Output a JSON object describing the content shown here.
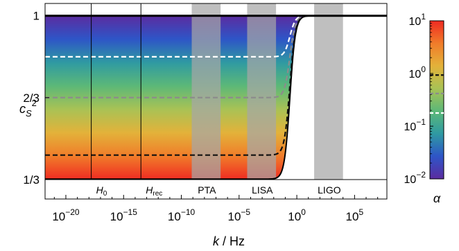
{
  "chart_data": {
    "type": "area",
    "xlabel_var": "k",
    "xlabel_unit": " / Hz",
    "ylabel_base": "c",
    "ylabel_sub": "S",
    "ylabel_sup": "2",
    "x_scale": "log",
    "xlim_log10": [
      -21.8,
      7.8
    ],
    "ylim": [
      0.3333,
      1.05
    ],
    "x_ticks": [
      {
        "exp": -20,
        "base": "10",
        "sup": "−20"
      },
      {
        "exp": -15,
        "base": "10",
        "sup": "−15"
      },
      {
        "exp": -10,
        "base": "10",
        "sup": "−10"
      },
      {
        "exp": -5,
        "base": "10",
        "sup": "−5"
      },
      {
        "exp": 0,
        "base": "10",
        "sup": "0"
      },
      {
        "exp": 5,
        "base": "10",
        "sup": "5"
      }
    ],
    "y_ticks": [
      {
        "value": 1,
        "label": "1"
      },
      {
        "value": 0.6667,
        "label": "2/3"
      },
      {
        "value": 0.3333,
        "label": "1/3"
      }
    ],
    "vlines": [
      {
        "log10_k": -17.8,
        "base": "H",
        "sub": "0"
      },
      {
        "log10_k": -13.5,
        "base": "H",
        "sub": "rec"
      }
    ],
    "bands": [
      {
        "label": "PTA",
        "log10_min": -9.1,
        "log10_max": -6.6
      },
      {
        "label": "LISA",
        "log10_min": -4.3,
        "log10_max": -1.8
      },
      {
        "label": "LIGO",
        "log10_min": 1.5,
        "log10_max": 4.0
      }
    ],
    "transition_log10_k": -0.6,
    "curves": [
      {
        "plateau": 0.833,
        "style": "dashed",
        "color": "#ffffff"
      },
      {
        "plateau": 0.667,
        "style": "dashed",
        "color": "#8c8c8c"
      },
      {
        "plateau": 0.433,
        "style": "dashed",
        "color": "#111111"
      }
    ],
    "colorbar": {
      "label": "α",
      "scale": "log",
      "ticks": [
        {
          "exp": 1,
          "base": "10",
          "sup": "1"
        },
        {
          "exp": 0,
          "base": "10",
          "sup": "0"
        },
        {
          "exp": -1,
          "base": "10",
          "sup": "−1"
        },
        {
          "exp": -2,
          "base": "10",
          "sup": "−2"
        }
      ],
      "markers": [
        {
          "exp": -0.03,
          "color": "#111111"
        },
        {
          "exp": -0.38,
          "color": "#8c8c8c"
        },
        {
          "exp": -0.75,
          "color": "#ffffff"
        }
      ],
      "gradient": [
        "#ef2b22",
        "#f07c2a",
        "#e3b23a",
        "#a9c255",
        "#5cb878",
        "#2f9aa2",
        "#2e55c7",
        "#5b2ca0"
      ]
    }
  }
}
